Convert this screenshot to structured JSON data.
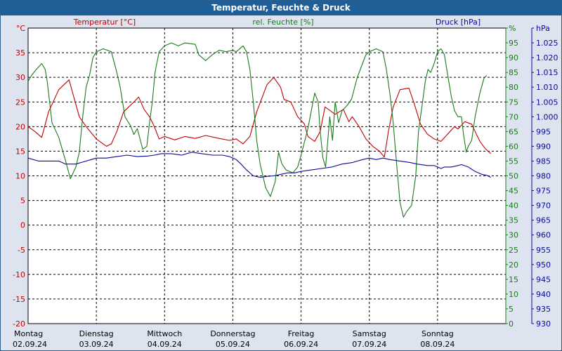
{
  "title": "Temperatur, Feuchte & Druck",
  "colors": {
    "temperature": "#c00000",
    "humidity": "#1a7a1a",
    "pressure": "#0a0a9a",
    "title_bar": "#1f5f99",
    "background": "#dde4ef",
    "plot": "#ffffff"
  },
  "chart_data": {
    "type": "line",
    "title": "Temperatur, Feuchte & Druck",
    "x_labels": [
      {
        "day": "Montag",
        "date": "02.09.24"
      },
      {
        "day": "Dienstag",
        "date": "03.09.24"
      },
      {
        "day": "Mittwoch",
        "date": "04.09.24"
      },
      {
        "day": "Donnerstag",
        "date": "05.09.24"
      },
      {
        "day": "Freitag",
        "date": "06.09.24"
      },
      {
        "day": "Samstag",
        "date": "07.09.24"
      },
      {
        "day": "Sonntag",
        "date": "08.09.24"
      }
    ],
    "x_range_days": [
      0,
      7
    ],
    "axes": {
      "temperature": {
        "label": "Temperatur [°C]",
        "unit": "°C",
        "min": -20,
        "max": 40,
        "ticks": [
          40,
          35,
          30,
          25,
          20,
          15,
          10,
          5,
          0,
          -5,
          -10,
          -15,
          -20
        ],
        "tick_labels": [
          "°C",
          "35",
          "30",
          "25",
          "20",
          "15",
          "10",
          "5",
          "0",
          "-5",
          "-10",
          "-15",
          "-20"
        ]
      },
      "humidity": {
        "label": "rel. Feuchte [%]",
        "unit": "%",
        "min": 0,
        "max": 100,
        "ticks": [
          100,
          95,
          90,
          85,
          80,
          75,
          70,
          65,
          60,
          55,
          50,
          45,
          40,
          35,
          30,
          25,
          20,
          15,
          10,
          5,
          0
        ],
        "tick_labels": [
          "%",
          "95",
          "90",
          "85",
          "80",
          "75",
          "70",
          "65",
          "60",
          "55",
          "50",
          "45",
          "40",
          "35",
          "30",
          "25",
          "20",
          "15",
          "10",
          "5",
          "0"
        ]
      },
      "pressure": {
        "label": "Druck [hPa]",
        "unit": "hPa",
        "min": 930,
        "max": 1030,
        "ticks": [
          1030,
          1025,
          1020,
          1015,
          1010,
          1005,
          1000,
          995,
          990,
          985,
          980,
          975,
          970,
          965,
          960,
          955,
          950,
          945,
          940,
          935,
          930
        ],
        "tick_labels": [
          "hPa",
          "1.025",
          "1.020",
          "1.015",
          "1.010",
          "1.005",
          "1.000",
          "995",
          "990",
          "985",
          "980",
          "975",
          "970",
          "965",
          "960",
          "955",
          "950",
          "945",
          "940",
          "935",
          "930"
        ]
      }
    },
    "series": [
      {
        "name": "Temperatur",
        "axis": "temperature",
        "points": [
          [
            0,
            20
          ],
          [
            0.1,
            19
          ],
          [
            0.2,
            17.8
          ],
          [
            0.3,
            23
          ],
          [
            0.45,
            27.5
          ],
          [
            0.6,
            29.5
          ],
          [
            0.65,
            27
          ],
          [
            0.75,
            22
          ],
          [
            0.85,
            20
          ],
          [
            1.0,
            17.5
          ],
          [
            1.15,
            16
          ],
          [
            1.22,
            16.5
          ],
          [
            1.3,
            19
          ],
          [
            1.4,
            23
          ],
          [
            1.55,
            25
          ],
          [
            1.62,
            26
          ],
          [
            1.7,
            23.5
          ],
          [
            1.78,
            22
          ],
          [
            1.85,
            20
          ],
          [
            1.92,
            17.5
          ],
          [
            2.0,
            18
          ],
          [
            2.15,
            17.3
          ],
          [
            2.3,
            18
          ],
          [
            2.45,
            17.6
          ],
          [
            2.6,
            18.2
          ],
          [
            2.8,
            17.6
          ],
          [
            2.95,
            17.2
          ],
          [
            3.05,
            17.5
          ],
          [
            3.15,
            16.5
          ],
          [
            3.25,
            18
          ],
          [
            3.35,
            23
          ],
          [
            3.5,
            28.5
          ],
          [
            3.6,
            30
          ],
          [
            3.7,
            28
          ],
          [
            3.75,
            25.5
          ],
          [
            3.85,
            25
          ],
          [
            3.95,
            22
          ],
          [
            4.05,
            20.5
          ],
          [
            4.1,
            18
          ],
          [
            4.2,
            17
          ],
          [
            4.28,
            19
          ],
          [
            4.35,
            24
          ],
          [
            4.45,
            23
          ],
          [
            4.5,
            22.5
          ],
          [
            4.62,
            23.5
          ],
          [
            4.7,
            21
          ],
          [
            4.75,
            22
          ],
          [
            4.85,
            20
          ],
          [
            4.95,
            17.5
          ],
          [
            5.05,
            16
          ],
          [
            5.15,
            15
          ],
          [
            5.22,
            13.8
          ],
          [
            5.28,
            19
          ],
          [
            5.35,
            24
          ],
          [
            5.45,
            27.5
          ],
          [
            5.58,
            27.8
          ],
          [
            5.65,
            25
          ],
          [
            5.75,
            20.5
          ],
          [
            5.85,
            18.5
          ],
          [
            5.95,
            17.5
          ],
          [
            6.05,
            17
          ],
          [
            6.15,
            18.5
          ],
          [
            6.25,
            20
          ],
          [
            6.3,
            19.5
          ],
          [
            6.4,
            21
          ],
          [
            6.5,
            20.5
          ],
          [
            6.55,
            19
          ],
          [
            6.62,
            17
          ],
          [
            6.7,
            15.5
          ],
          [
            6.78,
            14.5
          ]
        ]
      },
      {
        "name": "rel. Feuchte",
        "axis": "humidity",
        "points": [
          [
            0,
            82
          ],
          [
            0.05,
            84
          ],
          [
            0.12,
            86
          ],
          [
            0.2,
            88
          ],
          [
            0.25,
            86
          ],
          [
            0.28,
            82
          ],
          [
            0.35,
            68
          ],
          [
            0.45,
            63
          ],
          [
            0.55,
            55
          ],
          [
            0.62,
            49
          ],
          [
            0.7,
            53
          ],
          [
            0.75,
            58
          ],
          [
            0.8,
            70
          ],
          [
            0.85,
            80
          ],
          [
            0.9,
            84
          ],
          [
            0.95,
            90
          ],
          [
            1.0,
            92
          ],
          [
            1.1,
            93
          ],
          [
            1.22,
            92
          ],
          [
            1.3,
            85
          ],
          [
            1.35,
            80
          ],
          [
            1.42,
            70
          ],
          [
            1.5,
            67
          ],
          [
            1.55,
            64
          ],
          [
            1.6,
            66
          ],
          [
            1.68,
            59
          ],
          [
            1.74,
            60
          ],
          [
            1.78,
            68
          ],
          [
            1.82,
            75
          ],
          [
            1.86,
            85
          ],
          [
            1.92,
            92
          ],
          [
            2.0,
            94
          ],
          [
            2.1,
            95
          ],
          [
            2.2,
            94
          ],
          [
            2.3,
            95
          ],
          [
            2.45,
            94.5
          ],
          [
            2.5,
            91
          ],
          [
            2.6,
            89
          ],
          [
            2.7,
            91
          ],
          [
            2.8,
            92.5
          ],
          [
            2.9,
            92
          ],
          [
            3.0,
            92.5
          ],
          [
            3.05,
            92
          ],
          [
            3.15,
            94
          ],
          [
            3.2,
            92
          ],
          [
            3.25,
            86
          ],
          [
            3.3,
            75
          ],
          [
            3.35,
            62
          ],
          [
            3.4,
            54
          ],
          [
            3.48,
            46
          ],
          [
            3.55,
            43
          ],
          [
            3.62,
            48
          ],
          [
            3.67,
            58
          ],
          [
            3.72,
            54
          ],
          [
            3.78,
            52
          ],
          [
            3.88,
            51
          ],
          [
            3.95,
            53
          ],
          [
            4.0,
            57
          ],
          [
            4.1,
            66
          ],
          [
            4.15,
            72
          ],
          [
            4.2,
            78
          ],
          [
            4.25,
            75
          ],
          [
            4.28,
            65
          ],
          [
            4.32,
            56
          ],
          [
            4.36,
            53
          ],
          [
            4.42,
            70
          ],
          [
            4.46,
            62
          ],
          [
            4.5,
            75
          ],
          [
            4.55,
            68
          ],
          [
            4.6,
            72
          ],
          [
            4.68,
            74
          ],
          [
            4.74,
            76
          ],
          [
            4.82,
            83
          ],
          [
            4.9,
            88
          ],
          [
            4.95,
            91
          ],
          [
            5.0,
            92
          ],
          [
            5.1,
            93
          ],
          [
            5.2,
            92
          ],
          [
            5.25,
            86
          ],
          [
            5.3,
            78
          ],
          [
            5.35,
            68
          ],
          [
            5.4,
            54
          ],
          [
            5.45,
            41
          ],
          [
            5.5,
            36
          ],
          [
            5.55,
            38
          ],
          [
            5.62,
            40
          ],
          [
            5.68,
            50
          ],
          [
            5.72,
            65
          ],
          [
            5.78,
            75
          ],
          [
            5.82,
            82
          ],
          [
            5.86,
            86
          ],
          [
            5.9,
            85
          ],
          [
            5.95,
            88
          ],
          [
            6.0,
            92
          ],
          [
            6.05,
            93
          ],
          [
            6.1,
            91
          ],
          [
            6.15,
            84
          ],
          [
            6.2,
            77
          ],
          [
            6.25,
            72
          ],
          [
            6.3,
            70
          ],
          [
            6.35,
            70
          ],
          [
            6.38,
            64
          ],
          [
            6.42,
            58
          ],
          [
            6.45,
            60
          ],
          [
            6.5,
            62
          ],
          [
            6.55,
            70
          ],
          [
            6.62,
            78
          ],
          [
            6.68,
            83
          ],
          [
            6.72,
            84
          ]
        ]
      },
      {
        "name": "Druck",
        "axis": "pressure",
        "points": [
          [
            0,
            986
          ],
          [
            0.15,
            985
          ],
          [
            0.3,
            985
          ],
          [
            0.45,
            985
          ],
          [
            0.55,
            984
          ],
          [
            0.7,
            984
          ],
          [
            0.85,
            985
          ],
          [
            1.0,
            986
          ],
          [
            1.15,
            986
          ],
          [
            1.3,
            986.5
          ],
          [
            1.45,
            987
          ],
          [
            1.6,
            986.5
          ],
          [
            1.75,
            986.7
          ],
          [
            1.85,
            987
          ],
          [
            1.95,
            987.5
          ],
          [
            2.1,
            987.5
          ],
          [
            2.25,
            987
          ],
          [
            2.4,
            988
          ],
          [
            2.55,
            987.5
          ],
          [
            2.7,
            987
          ],
          [
            2.85,
            987
          ],
          [
            2.95,
            986.5
          ],
          [
            3.05,
            985.5
          ],
          [
            3.12,
            984
          ],
          [
            3.2,
            982
          ],
          [
            3.3,
            980
          ],
          [
            3.4,
            979.5
          ],
          [
            3.5,
            979.8
          ],
          [
            3.6,
            980
          ],
          [
            3.7,
            980.5
          ],
          [
            3.8,
            981
          ],
          [
            3.9,
            981
          ],
          [
            4.0,
            981.5
          ],
          [
            4.15,
            982
          ],
          [
            4.3,
            982.5
          ],
          [
            4.45,
            983
          ],
          [
            4.6,
            984
          ],
          [
            4.75,
            984.5
          ],
          [
            4.9,
            985.5
          ],
          [
            5.0,
            986
          ],
          [
            5.1,
            985.5
          ],
          [
            5.2,
            986
          ],
          [
            5.3,
            985.5
          ],
          [
            5.45,
            985
          ],
          [
            5.6,
            984.5
          ],
          [
            5.7,
            984
          ],
          [
            5.85,
            983.5
          ],
          [
            5.95,
            983.5
          ],
          [
            6.05,
            982.5
          ],
          [
            6.1,
            983
          ],
          [
            6.2,
            983
          ],
          [
            6.3,
            983.5
          ],
          [
            6.35,
            983.8
          ],
          [
            6.45,
            983
          ],
          [
            6.55,
            981.5
          ],
          [
            6.65,
            980.5
          ],
          [
            6.72,
            980.2
          ],
          [
            6.78,
            979.5
          ]
        ]
      }
    ]
  }
}
